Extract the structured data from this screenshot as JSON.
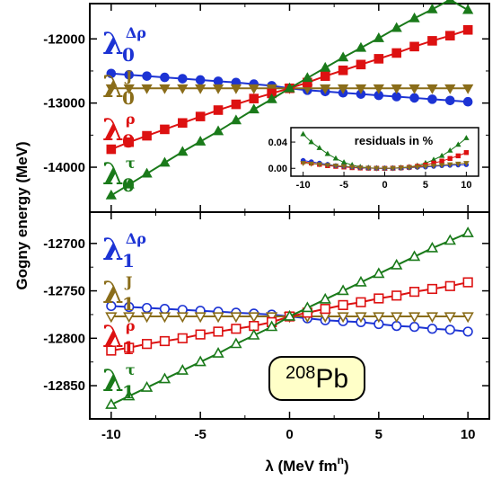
{
  "colors": {
    "blue": "#1c33d4",
    "olive": "#8a6d1a",
    "red": "#dd1111",
    "green": "#1a7a1a",
    "badge_bg": "#ffffc8"
  },
  "shared_x_label": "λ (MeV fm",
  "shared_x_label_sup": "n",
  "shared_x_label_end": ")",
  "y_label": "Gogny energy (MeV)",
  "badge": {
    "mass": "208",
    "element": "Pb"
  },
  "chart_data": [
    {
      "type": "line",
      "panel": "top",
      "xlim": [
        -11.2,
        11.2
      ],
      "ylim": [
        -14700,
        -11450
      ],
      "x_ticks": [
        -10,
        -5,
        0,
        5,
        10
      ],
      "y_ticks": [
        -14000,
        -13000,
        -12000
      ],
      "y_tick_labels": [
        "-14000",
        "-13000",
        "-12000"
      ],
      "x_tick_labels": [
        "-10",
        "-5",
        "0",
        "5",
        "10"
      ],
      "series": [
        {
          "label_sub": "0",
          "label_sup": "Δρ",
          "color_key": "blue",
          "marker": "circle",
          "filled": true,
          "x": [
            -10,
            -9,
            -8,
            -7,
            -6,
            -5,
            -4,
            -3,
            -2,
            -1,
            0,
            1,
            2,
            3,
            4,
            5,
            6,
            7,
            8,
            9,
            10
          ],
          "y": [
            -12540,
            -12560,
            -12580,
            -12600,
            -12620,
            -12640,
            -12660,
            -12680,
            -12705,
            -12730,
            -12770,
            -12800,
            -12820,
            -12840,
            -12860,
            -12880,
            -12900,
            -12920,
            -12940,
            -12960,
            -12980
          ]
        },
        {
          "label_sub": "0",
          "label_sup": "J",
          "color_key": "olive",
          "marker": "triangle-down",
          "filled": true,
          "x": [
            -10,
            -9,
            -8,
            -7,
            -6,
            -5,
            -4,
            -3,
            -2,
            -1,
            0,
            1,
            2,
            3,
            4,
            5,
            6,
            7,
            8,
            9,
            10
          ],
          "y": [
            -12770,
            -12770,
            -12770,
            -12770,
            -12770,
            -12770,
            -12770,
            -12770,
            -12770,
            -12770,
            -12770,
            -12770,
            -12770,
            -12770,
            -12770,
            -12770,
            -12770,
            -12770,
            -12770,
            -12770,
            -12770
          ]
        },
        {
          "label_sub": "0",
          "label_sup": "ρ",
          "color_key": "red",
          "marker": "square",
          "filled": true,
          "x": [
            -10,
            -9,
            -8,
            -7,
            -6,
            -5,
            -4,
            -3,
            -2,
            -1,
            0,
            1,
            2,
            3,
            4,
            5,
            6,
            7,
            8,
            9,
            10
          ],
          "y": [
            -13720,
            -13610,
            -13510,
            -13410,
            -13310,
            -13210,
            -13110,
            -13020,
            -12930,
            -12850,
            -12770,
            -12680,
            -12580,
            -12490,
            -12400,
            -12310,
            -12220,
            -12120,
            -12030,
            -11950,
            -11860
          ]
        },
        {
          "label_sub": "0",
          "label_sup": "τ",
          "color_key": "green",
          "marker": "triangle-up",
          "filled": true,
          "x": [
            -10,
            -9,
            -8,
            -7,
            -6,
            -5,
            -4,
            -3,
            -2,
            -1,
            0,
            1,
            2,
            3,
            4,
            5,
            6,
            7,
            8,
            9,
            10
          ],
          "y": [
            -14440,
            -14270,
            -14100,
            -13930,
            -13760,
            -13600,
            -13440,
            -13270,
            -13100,
            -12940,
            -12770,
            -12610,
            -12450,
            -12290,
            -12140,
            -11990,
            -11830,
            -11680,
            -11540,
            -11390,
            -11550
          ]
        }
      ],
      "inset": {
        "title": "residuals in %",
        "xlim": [
          -11.5,
          11.5
        ],
        "ylim": [
          -0.012,
          0.062
        ],
        "x_ticks": [
          -10,
          -5,
          0,
          5,
          10
        ],
        "x_tick_labels": [
          "-10",
          "-5",
          "0",
          "5",
          "10"
        ],
        "y_ticks": [
          0.0,
          0.04
        ],
        "y_tick_labels": [
          "0.00",
          "0.04"
        ],
        "series": [
          {
            "color_key": "green",
            "marker": "triangle-up",
            "x": [
              -10,
              -9,
              -8,
              -7,
              -6,
              -5,
              -4,
              -3,
              -2,
              -1,
              0,
              1,
              2,
              3,
              4,
              5,
              6,
              7,
              8,
              9,
              10
            ],
            "y": [
              0.052,
              0.04,
              0.031,
              0.022,
              0.015,
              0.009,
              0.005,
              0.002,
              0.0008,
              0.0002,
              0,
              0.0002,
              0.001,
              0.002,
              0.004,
              0.008,
              0.013,
              0.019,
              0.027,
              0.036,
              0.046
            ]
          },
          {
            "color_key": "red",
            "marker": "square",
            "x": [
              -10,
              -9,
              -8,
              -7,
              -6,
              -5,
              -4,
              -3,
              -2,
              -1,
              0,
              1,
              2,
              3,
              4,
              5,
              6,
              7,
              8,
              9,
              10
            ],
            "y": [
              0.01,
              0.008,
              0.006,
              0.004,
              0.003,
              0.002,
              0.001,
              0.0005,
              0.0002,
              0.0001,
              0,
              0.0002,
              0.0007,
              0.0015,
              0.003,
              0.005,
              0.008,
              0.011,
              0.015,
              0.019,
              0.024
            ]
          },
          {
            "color_key": "blue",
            "marker": "circle",
            "x": [
              -10,
              -9,
              -8,
              -7,
              -6,
              -5,
              -4,
              -3,
              -2,
              -1,
              0,
              1,
              2,
              3,
              4,
              5,
              6,
              7,
              8,
              9,
              10
            ],
            "y": [
              0.012,
              0.01,
              0.008,
              0.006,
              0.004,
              0.003,
              0.002,
              0.001,
              0.0004,
              0.0001,
              0,
              0.0001,
              0.0004,
              0.001,
              0.0015,
              0.002,
              0.003,
              0.004,
              0.0045,
              0.005,
              0.0055
            ]
          },
          {
            "color_key": "olive",
            "marker": "triangle-down",
            "x": [
              -10,
              -9,
              -8,
              -7,
              -6,
              -5,
              -4,
              -3,
              -2,
              -1,
              0,
              1,
              2,
              3,
              4,
              5,
              6,
              7,
              8,
              9,
              10
            ],
            "y": [
              0.008,
              0.007,
              0.006,
              0.005,
              0.004,
              0.003,
              0.002,
              0.001,
              0.0005,
              0.0001,
              0,
              0.0002,
              0.0006,
              0.0012,
              0.002,
              0.003,
              0.004,
              0.005,
              0.006,
              0.007,
              0.008
            ]
          }
        ]
      }
    },
    {
      "type": "line",
      "panel": "bottom",
      "xlim": [
        -11.2,
        11.2
      ],
      "ylim": [
        -12885,
        -12667
      ],
      "x_ticks": [
        -10,
        -5,
        0,
        5,
        10
      ],
      "y_ticks": [
        -12850,
        -12800,
        -12750,
        -12700
      ],
      "y_tick_labels": [
        "-12850",
        "-12800",
        "-12750",
        "-12700"
      ],
      "x_tick_labels": [
        "-10",
        "-5",
        "0",
        "5",
        "10"
      ],
      "series": [
        {
          "label_sub": "1",
          "label_sup": "Δρ",
          "color_key": "blue",
          "marker": "circle",
          "filled": false,
          "x": [
            -10,
            -9,
            -8,
            -7,
            -6,
            -5,
            -4,
            -3,
            -2,
            -1,
            0,
            1,
            2,
            3,
            4,
            5,
            6,
            7,
            8,
            9,
            10
          ],
          "y": [
            -12766,
            -12767,
            -12768,
            -12769,
            -12770,
            -12771,
            -12772,
            -12773,
            -12774,
            -12775,
            -12777,
            -12779,
            -12781,
            -12782,
            -12783,
            -12785,
            -12787,
            -12788,
            -12790,
            -12791,
            -12793
          ]
        },
        {
          "label_sub": "1",
          "label_sup": "J",
          "color_key": "olive",
          "marker": "triangle-down",
          "filled": false,
          "x": [
            -10,
            -9,
            -8,
            -7,
            -6,
            -5,
            -4,
            -3,
            -2,
            -1,
            0,
            1,
            2,
            3,
            4,
            5,
            6,
            7,
            8,
            9,
            10
          ],
          "y": [
            -12777,
            -12777,
            -12777,
            -12777,
            -12777,
            -12777,
            -12777,
            -12777,
            -12777,
            -12777,
            -12777,
            -12777,
            -12777,
            -12777,
            -12777,
            -12777,
            -12777,
            -12777,
            -12777,
            -12777,
            -12777
          ]
        },
        {
          "label_sub": "1",
          "label_sup": "ρ",
          "color_key": "red",
          "marker": "square",
          "filled": false,
          "x": [
            -10,
            -9,
            -8,
            -7,
            -6,
            -5,
            -4,
            -3,
            -2,
            -1,
            0,
            1,
            2,
            3,
            4,
            5,
            6,
            7,
            8,
            9,
            10
          ],
          "y": [
            -12813,
            -12810,
            -12806,
            -12803,
            -12800,
            -12796,
            -12793,
            -12790,
            -12787,
            -12783,
            -12777,
            -12773,
            -12769,
            -12765,
            -12762,
            -12758,
            -12755,
            -12751,
            -12748,
            -12745,
            -12741
          ]
        },
        {
          "label_sub": "1",
          "label_sup": "τ",
          "color_key": "green",
          "marker": "triangle-up",
          "filled": false,
          "x": [
            -10,
            -9,
            -8,
            -7,
            -6,
            -5,
            -4,
            -3,
            -2,
            -1,
            0,
            1,
            2,
            3,
            4,
            5,
            6,
            7,
            8,
            9,
            10
          ],
          "y": [
            -12870,
            -12861,
            -12852,
            -12843,
            -12834,
            -12825,
            -12816,
            -12806,
            -12797,
            -12788,
            -12777,
            -12768,
            -12759,
            -12750,
            -12741,
            -12732,
            -12723,
            -12714,
            -12705,
            -12697,
            -12689
          ]
        }
      ]
    }
  ]
}
